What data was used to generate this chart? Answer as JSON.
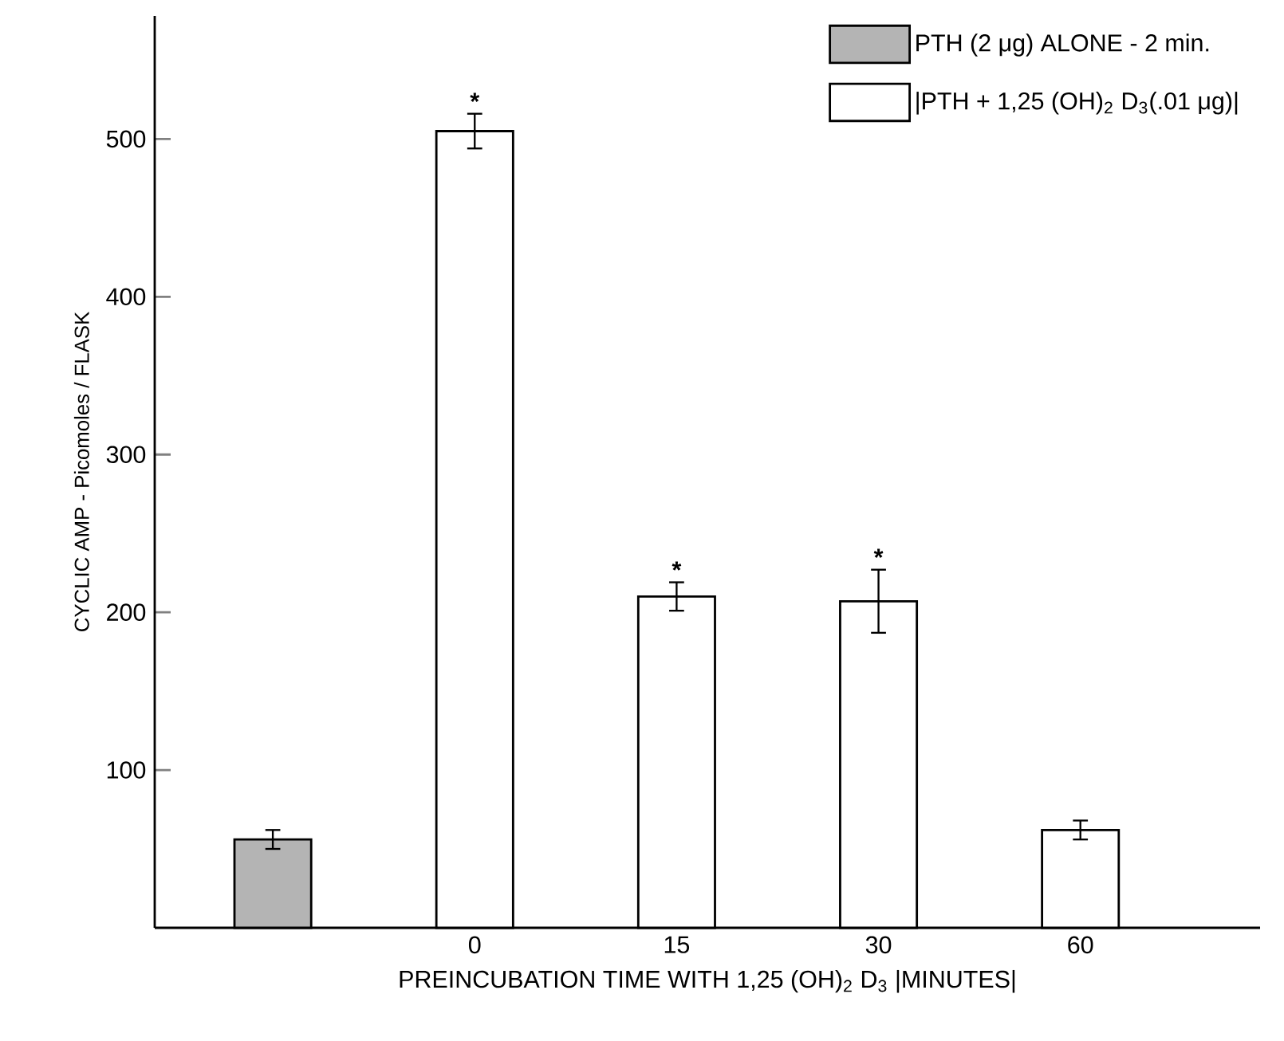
{
  "chart_data": {
    "type": "bar",
    "xlabel": "PREINCUBATION TIME WITH 1,25 (OH)$_{2}$ D$_{3}$ |MINUTES|",
    "ylabel": "CYCLIC AMP - Picomoles / FLASK",
    "categories": [
      null,
      "0",
      "15",
      "30",
      "60"
    ],
    "series": [
      {
        "name": "PTH (2 μg) ALONE - 2 min.",
        "color": "#b4b4b4",
        "values": [
          56,
          null,
          null,
          null,
          null
        ],
        "errors": [
          6,
          null,
          null,
          null,
          null
        ]
      },
      {
        "name": "|PTH + 1,25 (OH)$_{2}$ D$_{3}$(.01 μg)|",
        "color": "#ffffff",
        "values": [
          null,
          505,
          210,
          207,
          62
        ],
        "errors": [
          null,
          11,
          9,
          20,
          6
        ]
      }
    ],
    "ylim": [
      0,
      578
    ],
    "yticks": [
      100,
      200,
      300,
      400,
      500
    ],
    "legend": "top right",
    "annotations": [
      {
        "text": "*",
        "x": "0",
        "y": 505
      },
      {
        "text": "*",
        "x": "15",
        "y": 210
      },
      {
        "text": "*",
        "x": "30",
        "y": 207
      }
    ]
  }
}
